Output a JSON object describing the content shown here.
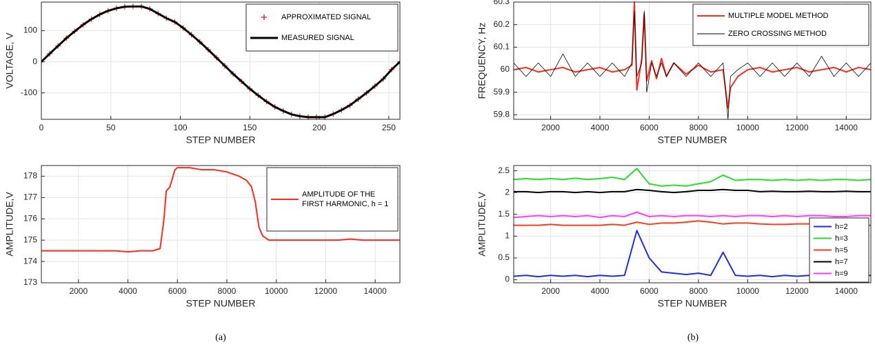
{
  "captions": [
    "(a)",
    "(b)"
  ],
  "chart_data": [
    {
      "type": "line",
      "xlabel": "STEP NUMBER",
      "ylabel": "VOLTAGE, V",
      "x": [
        0,
        6,
        12,
        18,
        24,
        30,
        36,
        42,
        48,
        54,
        60,
        66,
        72,
        78,
        84,
        90,
        96,
        102,
        108,
        114,
        120,
        126,
        132,
        138,
        144,
        150,
        156,
        162,
        168,
        174,
        180,
        186,
        192,
        198,
        204,
        210,
        216,
        222,
        228,
        234,
        240,
        246,
        252,
        258
      ],
      "xlim": [
        0,
        258
      ],
      "xticks": [
        0,
        50,
        100,
        150,
        200,
        250
      ],
      "ylim": [
        -185,
        192
      ],
      "yticks": [
        -100,
        0,
        100
      ],
      "grid": true,
      "legend": "top-right",
      "series": [
        {
          "name": "APPROXIMATED SIGNAL",
          "color": "#ff2a1a",
          "marker": "+",
          "linewidth": 0,
          "values": [
            0,
            26,
            51,
            76,
            98,
            119,
            137,
            152,
            164,
            172,
            177,
            178,
            178,
            170,
            155,
            140,
            128,
            109,
            87,
            64,
            39,
            13,
            -13,
            -39,
            -63,
            -87,
            -108,
            -128,
            -145,
            -158,
            -169,
            -175,
            -178,
            -178,
            -178,
            -168,
            -155,
            -140,
            -120,
            -100,
            -78,
            -55,
            -25,
            0
          ]
        },
        {
          "name": "MEASURED SIGNAL",
          "color": "#000000",
          "marker": "none",
          "linewidth": 3,
          "values": [
            0,
            26,
            51,
            76,
            98,
            119,
            137,
            152,
            164,
            172,
            177,
            178,
            178,
            170,
            155,
            140,
            128,
            109,
            87,
            64,
            39,
            13,
            -13,
            -39,
            -63,
            -87,
            -108,
            -128,
            -145,
            -158,
            -169,
            -175,
            -178,
            -178,
            -178,
            -168,
            -155,
            -140,
            -120,
            -100,
            -78,
            -55,
            -25,
            0
          ]
        }
      ]
    },
    {
      "type": "line",
      "xlabel": "STEP NUMBER",
      "ylabel": "AMPLITUDE,V",
      "x": [
        500,
        1000,
        1500,
        2000,
        2500,
        3000,
        3500,
        4000,
        4500,
        5000,
        5300,
        5450,
        5550,
        5700,
        5900,
        6000,
        6500,
        7000,
        7500,
        8000,
        8500,
        8800,
        9000,
        9150,
        9300,
        9450,
        9700,
        10000,
        10500,
        11000,
        11500,
        12000,
        12500,
        13000,
        13500,
        14000,
        14500,
        15000
      ],
      "xlim": [
        500,
        15000
      ],
      "xticks": [
        2000,
        4000,
        6000,
        8000,
        10000,
        12000,
        14000
      ],
      "ylim": [
        173,
        178.5
      ],
      "yticks": [
        173,
        174,
        175,
        176,
        177,
        178
      ],
      "grid": true,
      "legend": "top-right",
      "series": [
        {
          "name": "AMPLITUDE OF THE FIRST HARMONIC, h = 1",
          "color": "#ff2a1a",
          "marker": "none",
          "linewidth": 2,
          "values": [
            174.5,
            174.5,
            174.5,
            174.5,
            174.5,
            174.5,
            174.5,
            174.45,
            174.5,
            174.5,
            174.6,
            175.9,
            177.3,
            177.5,
            178.3,
            178.4,
            178.4,
            178.3,
            178.3,
            178.2,
            178.0,
            177.8,
            177.5,
            176.8,
            175.6,
            175.2,
            175.0,
            175.0,
            175.0,
            175.0,
            175.0,
            175.0,
            175.0,
            175.05,
            175.0,
            175.0,
            175.0,
            175.0
          ]
        }
      ]
    },
    {
      "type": "line",
      "xlabel": "STEP NUMBER",
      "ylabel": "FREQUENCY, Hz",
      "x": [
        500,
        1000,
        1500,
        2000,
        2500,
        3000,
        3500,
        4000,
        4500,
        5000,
        5300,
        5400,
        5500,
        5700,
        5800,
        5900,
        6100,
        6300,
        6500,
        6700,
        7000,
        7500,
        8000,
        8500,
        9000,
        9200,
        9300,
        9600,
        10000,
        10500,
        11000,
        11500,
        12000,
        12500,
        13000,
        13500,
        14000,
        14500,
        15000
      ],
      "xlim": [
        500,
        15000
      ],
      "xticks": [
        2000,
        4000,
        6000,
        8000,
        10000,
        12000,
        14000
      ],
      "ylim": [
        59.78,
        60.3
      ],
      "yticks": [
        59.8,
        59.9,
        60,
        60.1,
        60.2,
        60.3
      ],
      "grid": true,
      "legend": "top-right",
      "series": [
        {
          "name": "MULTIPLE MODEL METHOD",
          "color": "#ff2a1a",
          "marker": "none",
          "linewidth": 2,
          "values": [
            60.0,
            60.01,
            59.99,
            60.0,
            60.01,
            59.99,
            60.0,
            60.01,
            59.99,
            60.0,
            60.02,
            60.3,
            59.91,
            60.05,
            60.25,
            59.95,
            60.04,
            59.96,
            60.05,
            59.97,
            60.03,
            59.98,
            60.02,
            59.99,
            60.0,
            59.83,
            59.92,
            59.97,
            60.0,
            60.01,
            59.99,
            60.0,
            60.01,
            59.99,
            60.0,
            60.01,
            59.99,
            60.01,
            60.0
          ]
        },
        {
          "name": "ZERO CROSSING METHOD",
          "color": "#000000",
          "marker": "none",
          "linewidth": 0.8,
          "values": [
            60.03,
            59.97,
            60.03,
            59.97,
            60.07,
            59.97,
            60.03,
            59.97,
            60.03,
            59.97,
            60.03,
            60.26,
            59.97,
            60.03,
            60.26,
            59.9,
            60.03,
            59.97,
            60.03,
            59.97,
            60.03,
            59.97,
            60.03,
            59.97,
            60.03,
            59.78,
            59.97,
            60.0,
            60.03,
            59.97,
            60.03,
            59.97,
            60.03,
            59.97,
            60.06,
            59.97,
            60.03,
            59.97,
            60.03
          ]
        }
      ]
    },
    {
      "type": "line",
      "xlabel": "STEP NUMBER",
      "ylabel": "AMPLITUDE,V",
      "x": [
        500,
        1000,
        1500,
        2000,
        2500,
        3000,
        3500,
        4000,
        4500,
        5000,
        5500,
        6000,
        6500,
        7000,
        7500,
        8000,
        8500,
        9000,
        9500,
        10000,
        10500,
        11000,
        11500,
        12000,
        12500,
        13000,
        13500,
        14000,
        14500,
        15000
      ],
      "xlim": [
        500,
        15000
      ],
      "xticks": [
        2000,
        4000,
        6000,
        8000,
        10000,
        12000,
        14000
      ],
      "ylim": [
        -0.07,
        2.62
      ],
      "yticks": [
        0,
        0.5,
        1,
        1.5,
        2,
        2.5
      ],
      "grid": true,
      "legend": "bottom-right",
      "series": [
        {
          "name": "h=2",
          "color": "#1a2ee6",
          "marker": "none",
          "linewidth": 2,
          "values": [
            0.08,
            0.1,
            0.07,
            0.1,
            0.08,
            0.1,
            0.07,
            0.1,
            0.08,
            0.1,
            1.13,
            0.5,
            0.18,
            0.15,
            0.12,
            0.15,
            0.1,
            0.63,
            0.1,
            0.08,
            0.1,
            0.07,
            0.1,
            0.08,
            0.1,
            0.07,
            0.05,
            0.1,
            0.08,
            0.1
          ]
        },
        {
          "name": "h=3",
          "color": "#22e022",
          "marker": "none",
          "linewidth": 2,
          "values": [
            2.3,
            2.32,
            2.3,
            2.32,
            2.3,
            2.33,
            2.3,
            2.32,
            2.35,
            2.3,
            2.55,
            2.2,
            2.15,
            2.17,
            2.15,
            2.2,
            2.25,
            2.4,
            2.28,
            2.3,
            2.3,
            2.28,
            2.3,
            2.28,
            2.3,
            2.28,
            2.3,
            2.3,
            2.28,
            2.3
          ]
        },
        {
          "name": "h=5",
          "color": "#ff3a1f",
          "marker": "none",
          "linewidth": 2,
          "values": [
            1.25,
            1.25,
            1.25,
            1.27,
            1.25,
            1.25,
            1.25,
            1.25,
            1.27,
            1.25,
            1.32,
            1.27,
            1.3,
            1.3,
            1.32,
            1.35,
            1.32,
            1.28,
            1.3,
            1.3,
            1.28,
            1.27,
            1.27,
            1.28,
            1.28,
            1.25,
            1.25,
            1.25,
            1.25,
            1.25
          ]
        },
        {
          "name": "h=7",
          "color": "#000000",
          "marker": "none",
          "linewidth": 2,
          "values": [
            2.02,
            2.02,
            2.0,
            2.02,
            2.02,
            2.0,
            2.02,
            2.0,
            2.02,
            2.02,
            2.07,
            2.05,
            2.02,
            2.0,
            2.02,
            2.05,
            2.05,
            2.07,
            2.05,
            2.05,
            2.02,
            2.03,
            2.02,
            2.02,
            2.03,
            2.02,
            2.02,
            2.03,
            2.02,
            2.02
          ]
        },
        {
          "name": "h=9",
          "color": "#ff3cff",
          "marker": "none",
          "linewidth": 2,
          "values": [
            1.43,
            1.45,
            1.47,
            1.45,
            1.47,
            1.45,
            1.47,
            1.43,
            1.47,
            1.45,
            1.55,
            1.45,
            1.47,
            1.45,
            1.47,
            1.47,
            1.45,
            1.47,
            1.45,
            1.47,
            1.47,
            1.45,
            1.47,
            1.45,
            1.47,
            1.47,
            1.45,
            1.45,
            1.47,
            1.47
          ]
        }
      ]
    }
  ]
}
